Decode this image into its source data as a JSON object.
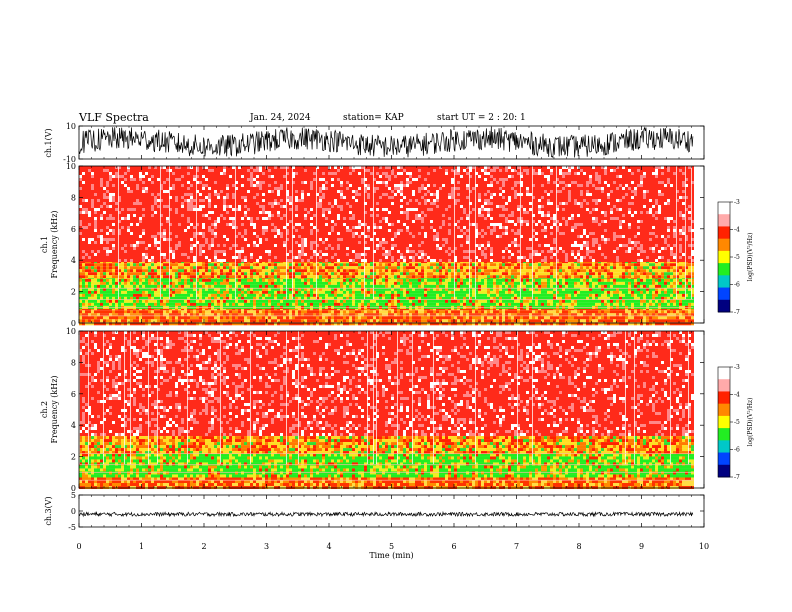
{
  "header": {
    "title": "VLF Spectra",
    "date": "Jan. 24, 2024",
    "station": "station= KAP",
    "start": "start  UT =   2 : 20: 1"
  },
  "chart_data": [
    {
      "type": "line",
      "ylabel": "ch.1(V)",
      "x_range_min": [
        0,
        9.83
      ],
      "ylim": [
        -10,
        10
      ],
      "yticks": [
        "10",
        "-10"
      ],
      "description_values": {
        "mean": 0,
        "amplitude_approx": 7
      }
    },
    {
      "type": "heatmap",
      "ylabel": "ch.1\nFrequency (kHz)",
      "ylabel_lines": [
        "ch.1",
        "Frequency  (kHz)"
      ],
      "ylim": [
        0,
        10
      ],
      "yticks": [
        "0",
        "2",
        "4",
        "6",
        "8",
        "10"
      ],
      "colorbar": {
        "label": "log(PSD)(V²/Hz)",
        "ticks": [
          "-3",
          "-4",
          "-5",
          "-6",
          "-7"
        ],
        "range": [
          -7,
          -3
        ]
      },
      "bands": [
        {
          "from_khz": 0,
          "to_khz": 1.0,
          "level": -4.3
        },
        {
          "from_khz": 1.0,
          "to_khz": 3.0,
          "level": -5.0
        },
        {
          "from_khz": 3.0,
          "to_khz": 4.0,
          "level": -4.5
        },
        {
          "from_khz": 4.0,
          "to_khz": 10,
          "level": -3.7
        }
      ]
    },
    {
      "type": "heatmap",
      "ylabel_lines": [
        "ch.2",
        "Frequency  (kHz)"
      ],
      "ylim": [
        0,
        10
      ],
      "yticks": [
        "0",
        "2",
        "4",
        "6",
        "8",
        "10"
      ],
      "colorbar": {
        "label": "log(PSD)(V²/Hz)",
        "ticks": [
          "-3",
          "-4",
          "-5",
          "-6",
          "-7"
        ],
        "range": [
          -7,
          -3
        ]
      },
      "bands": [
        {
          "from_khz": 0,
          "to_khz": 0.7,
          "level": -4.3
        },
        {
          "from_khz": 0.7,
          "to_khz": 2.2,
          "level": -5.2
        },
        {
          "from_khz": 2.2,
          "to_khz": 3.5,
          "level": -4.6
        },
        {
          "from_khz": 3.5,
          "to_khz": 10,
          "level": -3.7
        }
      ]
    },
    {
      "type": "line",
      "ylabel": "ch.3(V)",
      "ylim": [
        -5,
        5
      ],
      "yticks": [
        "5",
        "0",
        "-5"
      ],
      "description_values": {
        "mean": -1.0,
        "amplitude_approx": 0.6
      }
    }
  ],
  "xaxis": {
    "label": "Time  (min)",
    "ticks": [
      "0",
      "1",
      "2",
      "3",
      "4",
      "5",
      "6",
      "7",
      "8",
      "9",
      "10"
    ],
    "xlim": [
      0,
      10
    ],
    "data_end": 9.83
  },
  "colors": {
    "scale": [
      "#000080",
      "#0000ff",
      "#00a0ff",
      "#00ff40",
      "#ffff00",
      "#ff8000",
      "#ff0000",
      "#ffffff"
    ]
  }
}
